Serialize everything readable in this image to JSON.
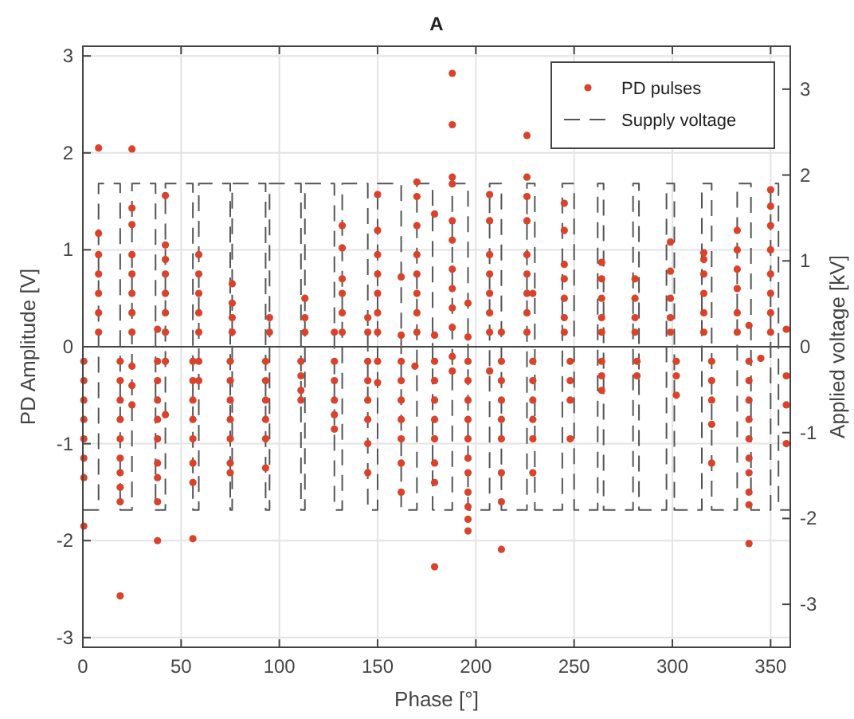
{
  "chart_data": {
    "type": "scatter",
    "title": "A",
    "xlabel": "Phase [°]",
    "ylabel": "PD Amplitude [V]",
    "y2label": "Applied voltage [kV]",
    "xlim": [
      0,
      360
    ],
    "xticks": [
      0,
      50,
      100,
      150,
      200,
      250,
      300,
      350
    ],
    "ylim": [
      -3.1,
      3.1
    ],
    "yticks": [
      -3,
      -2,
      -1,
      0,
      1,
      2,
      3
    ],
    "y2lim": [
      -3.5,
      3.5
    ],
    "y2ticks": [
      -3,
      -2,
      -1,
      0,
      1,
      2,
      3
    ],
    "grid": true,
    "legend": "top right",
    "ref_lines": [
      {
        "axis": "y",
        "value": 0,
        "color": "#444444"
      }
    ],
    "series": [
      {
        "name": "PD pulses",
        "marker": "circle",
        "color": "#d9432b",
        "x": [
          8,
          8,
          8,
          8,
          8,
          8,
          8,
          25,
          25,
          25,
          25,
          25,
          25,
          25,
          25,
          38,
          42,
          42,
          42,
          42,
          42,
          42,
          42,
          59,
          59,
          59,
          59,
          59,
          76,
          76,
          76,
          76,
          95,
          95,
          113,
          113,
          113,
          128,
          132,
          132,
          132,
          132,
          132,
          132,
          145,
          145,
          150,
          150,
          150,
          150,
          150,
          150,
          150,
          162,
          162,
          170,
          170,
          170,
          170,
          170,
          170,
          170,
          170,
          179,
          179,
          188,
          188,
          188,
          188,
          188,
          188,
          188,
          188,
          188,
          188,
          196,
          196,
          207,
          207,
          207,
          207,
          207,
          207,
          207,
          213,
          226,
          226,
          226,
          226,
          226,
          226,
          226,
          226,
          226,
          229,
          245,
          245,
          245,
          245,
          245,
          245,
          245,
          264,
          264,
          264,
          264,
          264,
          281,
          281,
          281,
          281,
          299,
          299,
          299,
          299,
          299,
          316,
          316,
          316,
          316,
          316,
          316,
          333,
          333,
          333,
          333,
          333,
          333,
          339,
          350,
          350,
          350,
          350,
          350,
          350,
          350,
          350,
          358,
          0.5,
          0.5,
          0.5,
          0.5,
          0.5,
          0.5,
          0.5,
          0.5,
          19,
          19,
          19,
          19,
          19,
          19,
          19,
          19,
          19,
          19,
          25,
          25,
          25,
          38,
          38,
          38,
          38,
          38,
          38,
          38,
          38,
          38,
          42,
          42,
          56,
          56,
          56,
          56,
          56,
          56,
          56,
          56,
          59,
          59,
          75,
          75,
          75,
          75,
          75,
          75,
          75,
          93,
          93,
          93,
          93,
          93,
          93,
          111,
          111,
          111,
          111,
          128,
          128,
          128,
          128,
          128,
          145,
          145,
          145,
          145,
          145,
          145,
          150,
          150,
          162,
          162,
          162,
          162,
          162,
          162,
          162,
          169,
          179,
          179,
          179,
          179,
          179,
          179,
          179,
          179,
          188,
          188,
          196,
          196,
          196,
          196,
          196,
          196,
          196,
          196,
          196,
          196,
          196,
          207,
          213,
          213,
          213,
          213,
          213,
          213,
          213,
          213,
          229,
          229,
          229,
          229,
          229,
          229,
          248,
          248,
          248,
          248,
          264,
          264,
          264,
          282,
          282,
          302,
          302,
          302,
          320,
          320,
          320,
          320,
          320,
          339,
          339,
          339,
          339,
          339,
          339,
          339,
          339,
          339,
          339,
          345,
          358,
          358,
          358
        ],
        "values": [
          0.15,
          0.35,
          0.55,
          0.75,
          0.95,
          1.17,
          2.05,
          0.15,
          0.35,
          0.55,
          0.75,
          0.95,
          1.26,
          1.43,
          2.04,
          0.18,
          0.15,
          0.35,
          0.55,
          0.75,
          0.9,
          1.05,
          1.56,
          0.15,
          0.35,
          0.55,
          0.75,
          0.95,
          0.15,
          0.3,
          0.45,
          0.65,
          0.15,
          0.3,
          0.15,
          0.3,
          0.5,
          0.15,
          0.15,
          0.35,
          0.55,
          0.7,
          1.02,
          1.25,
          0.15,
          0.3,
          0.15,
          0.35,
          0.55,
          0.75,
          0.95,
          1.2,
          1.57,
          0.12,
          0.72,
          0.15,
          0.35,
          0.55,
          0.75,
          0.95,
          1.25,
          1.55,
          1.7,
          0.12,
          1.37,
          0.2,
          0.4,
          0.6,
          0.8,
          1.1,
          1.3,
          1.68,
          1.75,
          2.29,
          2.82,
          0.1,
          0.45,
          0.15,
          0.35,
          0.55,
          0.75,
          0.95,
          1.3,
          1.57,
          0.15,
          0.15,
          0.35,
          0.55,
          0.75,
          0.95,
          1.3,
          1.55,
          1.75,
          2.18,
          0.55,
          0.15,
          0.3,
          0.5,
          0.7,
          0.85,
          1.2,
          1.48,
          0.15,
          0.3,
          0.5,
          0.7,
          0.87,
          0.15,
          0.3,
          0.5,
          0.7,
          0.15,
          0.3,
          0.5,
          0.78,
          1.08,
          0.15,
          0.35,
          0.55,
          0.75,
          0.9,
          0.97,
          0.15,
          0.35,
          0.6,
          0.8,
          1.0,
          1.2,
          0.22,
          0.15,
          0.35,
          0.55,
          0.75,
          1.0,
          1.25,
          1.45,
          1.62,
          0.18,
          -0.15,
          -0.35,
          -0.55,
          -0.75,
          -0.95,
          -1.15,
          -1.35,
          -1.85,
          -0.15,
          -0.35,
          -0.55,
          -0.75,
          -0.95,
          -1.15,
          -1.3,
          -1.45,
          -1.6,
          -2.57,
          -0.2,
          -0.4,
          -0.6,
          -0.15,
          -0.35,
          -0.55,
          -0.75,
          -0.95,
          -1.2,
          -1.35,
          -1.6,
          -2.0,
          -0.15,
          -0.7,
          -0.15,
          -0.35,
          -0.55,
          -0.75,
          -0.95,
          -1.2,
          -1.4,
          -1.98,
          -0.15,
          -0.35,
          -0.15,
          -0.35,
          -0.55,
          -0.75,
          -0.95,
          -1.2,
          -1.3,
          -0.15,
          -0.35,
          -0.55,
          -0.75,
          -0.95,
          -1.25,
          -0.15,
          -0.3,
          -0.45,
          -0.55,
          -0.15,
          -0.35,
          -0.55,
          -0.7,
          -0.85,
          -0.15,
          -0.35,
          -0.55,
          -0.75,
          -1.0,
          -1.3,
          -0.15,
          -0.37,
          -0.15,
          -0.35,
          -0.55,
          -0.75,
          -0.95,
          -1.2,
          -1.5,
          -0.2,
          -0.15,
          -0.35,
          -0.55,
          -0.75,
          -0.95,
          -1.2,
          -1.4,
          -2.27,
          -0.1,
          -0.25,
          -0.15,
          -0.35,
          -0.55,
          -0.75,
          -0.95,
          -1.15,
          -1.3,
          -1.5,
          -1.65,
          -1.78,
          -1.9,
          -0.25,
          -0.15,
          -0.35,
          -0.55,
          -0.75,
          -0.95,
          -1.3,
          -1.6,
          -2.09,
          -0.15,
          -0.35,
          -0.55,
          -0.75,
          -0.95,
          -1.3,
          -0.15,
          -0.35,
          -0.55,
          -0.95,
          -0.15,
          -0.3,
          -0.45,
          -0.15,
          -0.3,
          -0.15,
          -0.3,
          -0.5,
          -0.15,
          -0.35,
          -0.55,
          -0.8,
          -1.2,
          -0.15,
          -0.35,
          -0.55,
          -0.75,
          -0.95,
          -1.15,
          -1.3,
          -1.5,
          -1.63,
          -2.03,
          -0.12,
          -0.3,
          -0.6,
          -1.0
        ]
      },
      {
        "name": "Supply voltage",
        "type": "line",
        "axis": "y2",
        "line_style": "dashed",
        "marker": "none",
        "color": "#555555",
        "x": [
          0,
          8,
          8,
          19,
          19,
          25,
          25,
          37,
          37,
          42,
          42,
          56,
          56,
          59,
          59,
          75,
          75,
          76,
          76,
          93,
          93,
          95,
          95,
          111,
          111,
          113,
          113,
          128,
          128,
          132,
          132,
          145,
          145,
          150,
          150,
          162,
          162,
          170,
          170,
          178,
          178,
          188,
          188,
          196,
          196,
          207,
          207,
          213,
          213,
          226,
          226,
          230,
          230,
          244,
          244,
          250,
          250,
          262,
          262,
          265,
          265,
          280,
          280,
          283,
          283,
          297,
          297,
          301,
          301,
          315,
          315,
          320,
          320,
          333,
          333,
          340,
          340,
          350,
          350,
          354,
          354,
          360
        ],
        "values": [
          -1.9,
          -1.9,
          1.9,
          1.9,
          -1.9,
          -1.9,
          1.9,
          1.9,
          -1.9,
          -1.9,
          1.9,
          1.9,
          -1.9,
          -1.9,
          1.9,
          1.9,
          -1.9,
          -1.9,
          1.9,
          1.9,
          -1.9,
          -1.9,
          1.9,
          1.9,
          -1.9,
          -1.9,
          1.9,
          1.9,
          -1.9,
          -1.9,
          1.9,
          1.9,
          -1.9,
          -1.9,
          1.9,
          1.9,
          -1.9,
          -1.9,
          1.9,
          1.9,
          -1.9,
          -1.9,
          1.9,
          1.9,
          -1.9,
          -1.9,
          1.9,
          1.9,
          -1.9,
          -1.9,
          1.9,
          1.9,
          -1.9,
          -1.9,
          1.9,
          1.9,
          -1.9,
          -1.9,
          1.9,
          1.9,
          -1.9,
          -1.9,
          1.9,
          1.9,
          -1.9,
          -1.9,
          1.9,
          1.9,
          -1.9,
          -1.9,
          1.9,
          1.9,
          -1.9,
          -1.9,
          1.9,
          1.9,
          -1.9,
          -1.9,
          1.9,
          1.9,
          -1.9,
          -1.9
        ]
      }
    ]
  }
}
